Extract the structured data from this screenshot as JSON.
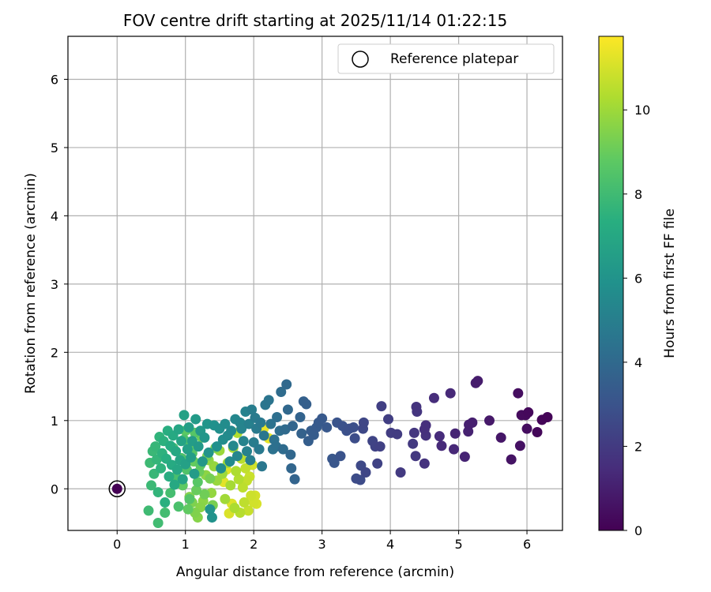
{
  "chart_data": {
    "type": "scatter",
    "title": "FOV centre drift starting at 2025/11/14 01:22:15",
    "xlabel": "Angular distance from reference (arcmin)",
    "ylabel": "Rotation from reference (arcmin)",
    "xlim": [
      -0.72,
      6.52
    ],
    "ylim": [
      -0.61,
      6.63
    ],
    "xticks": [
      0,
      1,
      2,
      3,
      4,
      5,
      6
    ],
    "yticks": [
      0,
      1,
      2,
      3,
      4,
      5,
      6
    ],
    "grid": true,
    "colormap": "viridis",
    "colorbar": {
      "label": "Hours from first FF file",
      "range": [
        0,
        11.75
      ],
      "ticks": [
        0,
        2,
        4,
        6,
        8,
        10
      ]
    },
    "legend": {
      "position": "top-right",
      "entries": [
        "Reference platepar"
      ]
    },
    "reference_point": {
      "x": 0,
      "y": 0,
      "hours": 0
    },
    "points": [
      [
        6.3,
        1.05,
        0.1
      ],
      [
        6.22,
        1.01,
        0.15
      ],
      [
        6.15,
        0.83,
        0.2
      ],
      [
        6.02,
        1.12,
        0.25
      ],
      [
        5.98,
        1.08,
        0.3
      ],
      [
        5.92,
        1.08,
        0.35
      ],
      [
        6.0,
        0.88,
        0.4
      ],
      [
        5.87,
        1.4,
        0.45
      ],
      [
        5.9,
        0.63,
        0.55
      ],
      [
        5.77,
        0.43,
        0.6
      ],
      [
        5.62,
        0.75,
        0.7
      ],
      [
        5.45,
        1.0,
        0.8
      ],
      [
        5.28,
        1.58,
        0.9
      ],
      [
        5.25,
        1.55,
        0.95
      ],
      [
        5.2,
        0.97,
        1.0
      ],
      [
        5.15,
        0.94,
        1.05
      ],
      [
        5.14,
        0.84,
        1.1
      ],
      [
        5.09,
        0.47,
        1.15
      ],
      [
        4.95,
        0.81,
        1.2
      ],
      [
        4.93,
        0.58,
        1.3
      ],
      [
        4.88,
        1.4,
        1.35
      ],
      [
        4.75,
        0.63,
        1.4
      ],
      [
        4.72,
        0.77,
        1.45
      ],
      [
        4.64,
        1.33,
        1.5
      ],
      [
        4.52,
        0.93,
        1.55
      ],
      [
        4.5,
        0.87,
        1.6
      ],
      [
        4.52,
        0.78,
        1.65
      ],
      [
        4.5,
        0.37,
        1.7
      ],
      [
        4.38,
        1.2,
        1.75
      ],
      [
        4.39,
        1.13,
        1.8
      ],
      [
        4.35,
        0.82,
        1.85
      ],
      [
        4.37,
        0.48,
        1.9
      ],
      [
        4.33,
        0.66,
        1.95
      ],
      [
        4.15,
        0.24,
        2.0
      ],
      [
        4.1,
        0.8,
        2.05
      ],
      [
        4.01,
        0.82,
        2.1
      ],
      [
        3.97,
        1.02,
        2.15
      ],
      [
        3.87,
        1.21,
        2.2
      ],
      [
        3.85,
        0.62,
        2.25
      ],
      [
        3.81,
        0.37,
        2.3
      ],
      [
        3.78,
        0.62,
        2.35
      ],
      [
        3.74,
        0.7,
        2.4
      ],
      [
        3.64,
        0.24,
        2.45
      ],
      [
        3.61,
        0.97,
        2.5
      ],
      [
        3.6,
        0.88,
        2.55
      ],
      [
        3.57,
        0.34,
        2.6
      ],
      [
        3.56,
        0.13,
        2.65
      ],
      [
        3.5,
        0.15,
        2.7
      ],
      [
        3.48,
        0.74,
        2.75
      ],
      [
        3.46,
        0.9,
        2.8
      ],
      [
        3.4,
        0.88,
        2.85
      ],
      [
        3.36,
        0.85,
        2.9
      ],
      [
        3.3,
        0.92,
        2.95
      ],
      [
        3.27,
        0.48,
        3.0
      ],
      [
        3.22,
        0.97,
        3.05
      ],
      [
        3.18,
        0.38,
        3.1
      ],
      [
        3.15,
        0.44,
        3.15
      ],
      [
        3.07,
        0.9,
        3.2
      ],
      [
        3.0,
        1.03,
        3.25
      ],
      [
        2.95,
        0.97,
        3.3
      ],
      [
        2.92,
        0.9,
        3.35
      ],
      [
        2.88,
        0.79,
        3.4
      ],
      [
        2.84,
        0.85,
        3.45
      ],
      [
        2.8,
        0.7,
        3.5
      ],
      [
        2.77,
        1.24,
        3.55
      ],
      [
        2.73,
        1.28,
        3.6
      ],
      [
        2.7,
        0.81,
        3.65
      ],
      [
        2.68,
        1.05,
        3.7
      ],
      [
        2.6,
        0.14,
        3.75
      ],
      [
        2.57,
        0.92,
        3.8
      ],
      [
        2.55,
        0.3,
        3.85
      ],
      [
        2.54,
        0.5,
        3.9
      ],
      [
        2.5,
        1.16,
        3.95
      ],
      [
        2.48,
        1.53,
        4.0
      ],
      [
        2.46,
        0.87,
        4.05
      ],
      [
        2.43,
        0.58,
        4.1
      ],
      [
        2.4,
        1.42,
        4.15
      ],
      [
        2.38,
        0.85,
        4.2
      ],
      [
        2.34,
        1.05,
        4.25
      ],
      [
        2.33,
        0.62,
        4.3
      ],
      [
        2.3,
        0.72,
        4.35
      ],
      [
        2.28,
        0.58,
        4.4
      ],
      [
        2.25,
        0.95,
        4.45
      ],
      [
        2.22,
        1.3,
        4.5
      ],
      [
        2.17,
        1.23,
        4.55
      ],
      [
        2.15,
        0.78,
        4.6
      ],
      [
        2.12,
        0.33,
        4.65
      ],
      [
        2.1,
        0.97,
        4.7
      ],
      [
        2.08,
        0.58,
        4.75
      ],
      [
        2.04,
        0.88,
        4.8
      ],
      [
        2.02,
        1.04,
        4.85
      ],
      [
        2.0,
        0.68,
        4.9
      ],
      [
        1.97,
        1.16,
        4.95
      ],
      [
        1.95,
        0.42,
        5.0
      ],
      [
        1.93,
        0.95,
        5.05
      ],
      [
        1.9,
        0.55,
        5.1
      ],
      [
        1.88,
        1.13,
        5.15
      ],
      [
        1.85,
        0.7,
        5.2
      ],
      [
        1.82,
        0.88,
        5.25
      ],
      [
        1.8,
        0.97,
        5.3
      ],
      [
        1.76,
        0.48,
        5.35
      ],
      [
        1.73,
        1.02,
        5.4
      ],
      [
        1.7,
        0.63,
        5.45
      ],
      [
        1.67,
        0.85,
        5.5
      ],
      [
        1.65,
        0.4,
        5.55
      ],
      [
        1.62,
        0.78,
        5.6
      ],
      [
        1.58,
        0.95,
        5.65
      ],
      [
        1.55,
        0.72,
        5.7
      ],
      [
        1.52,
        0.3,
        5.75
      ],
      [
        1.5,
        0.88,
        5.8
      ],
      [
        1.46,
        0.62,
        5.85
      ],
      [
        1.42,
        0.93,
        5.9
      ],
      [
        1.39,
        -0.42,
        5.95
      ],
      [
        1.36,
        -0.3,
        6.0
      ],
      [
        1.34,
        0.53,
        6.05
      ],
      [
        1.32,
        0.95,
        6.1
      ],
      [
        1.28,
        0.75,
        6.15
      ],
      [
        1.25,
        0.4,
        6.2
      ],
      [
        1.22,
        0.85,
        6.25
      ],
      [
        1.19,
        0.62,
        6.3
      ],
      [
        1.15,
        1.02,
        6.35
      ],
      [
        1.13,
        0.22,
        6.4
      ],
      [
        1.1,
        0.7,
        6.45
      ],
      [
        1.08,
        0.46,
        6.5
      ],
      [
        1.05,
        0.9,
        6.55
      ],
      [
        1.03,
        0.58,
        6.6
      ],
      [
        1.0,
        0.36,
        6.65
      ],
      [
        0.98,
        1.08,
        6.7
      ],
      [
        0.96,
        0.14,
        6.75
      ],
      [
        0.94,
        0.7,
        6.8
      ],
      [
        0.92,
        0.42,
        6.85
      ],
      [
        0.9,
        0.87,
        6.9
      ],
      [
        0.88,
        0.28,
        6.95
      ],
      [
        0.86,
        0.55,
        7.0
      ],
      [
        0.84,
        0.06,
        7.05
      ],
      [
        0.82,
        0.78,
        7.1
      ],
      [
        0.8,
        0.35,
        7.15
      ],
      [
        0.78,
        0.63,
        7.2
      ],
      [
        0.76,
        0.18,
        7.25
      ],
      [
        0.74,
        0.85,
        7.3
      ],
      [
        0.72,
        0.44,
        7.35
      ],
      [
        0.7,
        -0.2,
        7.4
      ],
      [
        0.68,
        0.7,
        7.45
      ],
      [
        0.66,
        0.52,
        7.5
      ],
      [
        0.64,
        0.3,
        7.55
      ],
      [
        0.62,
        0.76,
        7.6
      ],
      [
        0.6,
        -0.05,
        7.65
      ],
      [
        0.58,
        0.43,
        7.7
      ],
      [
        0.56,
        0.62,
        7.75
      ],
      [
        0.54,
        0.22,
        7.8
      ],
      [
        0.52,
        0.55,
        7.85
      ],
      [
        0.5,
        0.05,
        7.9
      ],
      [
        0.48,
        0.38,
        7.95
      ],
      [
        0.46,
        -0.32,
        8.0
      ],
      [
        0.6,
        -0.5,
        8.05
      ],
      [
        0.7,
        -0.35,
        8.1
      ],
      [
        0.78,
        -0.06,
        8.15
      ],
      [
        0.82,
        0.6,
        8.2
      ],
      [
        0.86,
        0.18,
        8.25
      ],
      [
        0.9,
        -0.26,
        8.3
      ],
      [
        0.94,
        0.45,
        8.35
      ],
      [
        0.98,
        0.72,
        8.4
      ],
      [
        1.02,
        0.28,
        8.45
      ],
      [
        1.06,
        -0.15,
        8.5
      ],
      [
        1.1,
        0.52,
        8.55
      ],
      [
        1.14,
        0.82,
        8.6
      ],
      [
        1.18,
        0.1,
        8.65
      ],
      [
        1.22,
        0.35,
        8.7
      ],
      [
        1.0,
        0.85,
        8.75
      ],
      [
        0.96,
        0.05,
        8.8
      ],
      [
        1.04,
        -0.3,
        8.85
      ],
      [
        1.08,
        0.62,
        8.9
      ],
      [
        1.12,
        0.4,
        8.95
      ],
      [
        1.16,
        -0.02,
        9.0
      ],
      [
        1.2,
        0.25,
        9.05
      ],
      [
        1.24,
        0.75,
        9.1
      ],
      [
        1.28,
        -0.08,
        9.15
      ],
      [
        1.32,
        0.48,
        9.2
      ],
      [
        1.36,
        0.15,
        9.25
      ],
      [
        1.4,
        -0.24,
        9.3
      ],
      [
        1.44,
        0.6,
        9.35
      ],
      [
        1.1,
        -0.2,
        9.4
      ],
      [
        1.14,
        -0.35,
        9.45
      ],
      [
        1.06,
        -0.12,
        9.5
      ],
      [
        1.18,
        -0.42,
        9.55
      ],
      [
        1.22,
        -0.27,
        9.6
      ],
      [
        1.26,
        -0.18,
        9.65
      ],
      [
        1.3,
        0.2,
        9.7
      ],
      [
        1.34,
        0.42,
        9.75
      ],
      [
        1.38,
        -0.06,
        9.8
      ],
      [
        1.42,
        0.33,
        9.85
      ],
      [
        1.46,
        0.12,
        9.9
      ],
      [
        1.5,
        0.56,
        9.95
      ],
      [
        1.54,
        0.22,
        10.0
      ],
      [
        1.58,
        -0.15,
        10.05
      ],
      [
        1.62,
        0.38,
        10.1
      ],
      [
        1.66,
        0.05,
        10.15
      ],
      [
        1.7,
        0.6,
        10.2
      ],
      [
        1.72,
        -0.28,
        10.25
      ],
      [
        1.74,
        0.26,
        10.3
      ],
      [
        1.76,
        0.82,
        10.35
      ],
      [
        1.78,
        0.14,
        10.4
      ],
      [
        1.8,
        -0.35,
        10.45
      ],
      [
        1.82,
        0.44,
        10.5
      ],
      [
        1.84,
        0.02,
        10.55
      ],
      [
        1.86,
        -0.2,
        10.6
      ],
      [
        1.88,
        0.3,
        10.65
      ],
      [
        1.9,
        0.12,
        10.7
      ],
      [
        1.92,
        -0.32,
        10.75
      ],
      [
        1.94,
        0.18,
        10.8
      ],
      [
        1.96,
        -0.1,
        10.85
      ],
      [
        1.98,
        0.35,
        10.9
      ],
      [
        2.0,
        -0.2,
        10.95
      ],
      [
        2.02,
        -0.1,
        11.0
      ],
      [
        2.04,
        -0.22,
        11.05
      ],
      [
        1.64,
        -0.36,
        11.1
      ],
      [
        1.68,
        -0.22,
        11.15
      ],
      [
        1.6,
        0.28,
        11.2
      ],
      [
        1.56,
        0.1,
        11.25
      ],
      [
        2.22,
        0.74,
        11.3
      ],
      [
        2.15,
        0.89,
        11.4
      ]
    ]
  }
}
